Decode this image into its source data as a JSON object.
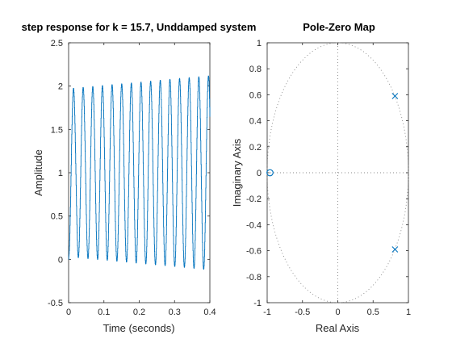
{
  "colors": {
    "series": "#0072bd",
    "axis": "#262626",
    "grid": "#888888",
    "background": "#ffffff"
  },
  "chart_data": [
    {
      "type": "line",
      "title": "step response for k = 15.7, Unddamped system",
      "xlabel": "Time (seconds)",
      "ylabel": "Amplitude",
      "xlim": [
        0,
        0.4
      ],
      "ylim": [
        -0.5,
        2.5
      ],
      "xticks": [
        "0",
        "0.1",
        "0.2",
        "0.3",
        "0.4"
      ],
      "yticks": [
        "-0.5",
        "0",
        "0.5",
        "1",
        "1.5",
        "2",
        "2.5"
      ],
      "grid": false,
      "series": [
        {
          "style": "stairs",
          "mean": 1.0,
          "amplitude_start": 0.97,
          "amplitude_end": 1.12,
          "period": 0.0273,
          "time_end": 0.4
        }
      ]
    },
    {
      "type": "scatter",
      "title": "Pole-Zero Map",
      "xlabel": "Real Axis",
      "ylabel": "Imaginary Axis",
      "xlim": [
        -1,
        1
      ],
      "ylim": [
        -1,
        1
      ],
      "xticks": [
        "-1",
        "-0.5",
        "0",
        "0.5",
        "1"
      ],
      "yticks": [
        "-1",
        "-0.8",
        "-0.6",
        "-0.4",
        "-0.2",
        "0",
        "0.2",
        "0.4",
        "0.6",
        "0.8",
        "1"
      ],
      "grid": "unit circle (dotted) and zero axes",
      "poles": [
        {
          "re": 0.81,
          "im": 0.59
        },
        {
          "re": 0.81,
          "im": -0.59
        }
      ],
      "zeros": [
        {
          "re": -0.96,
          "im": 0.0
        }
      ]
    }
  ]
}
